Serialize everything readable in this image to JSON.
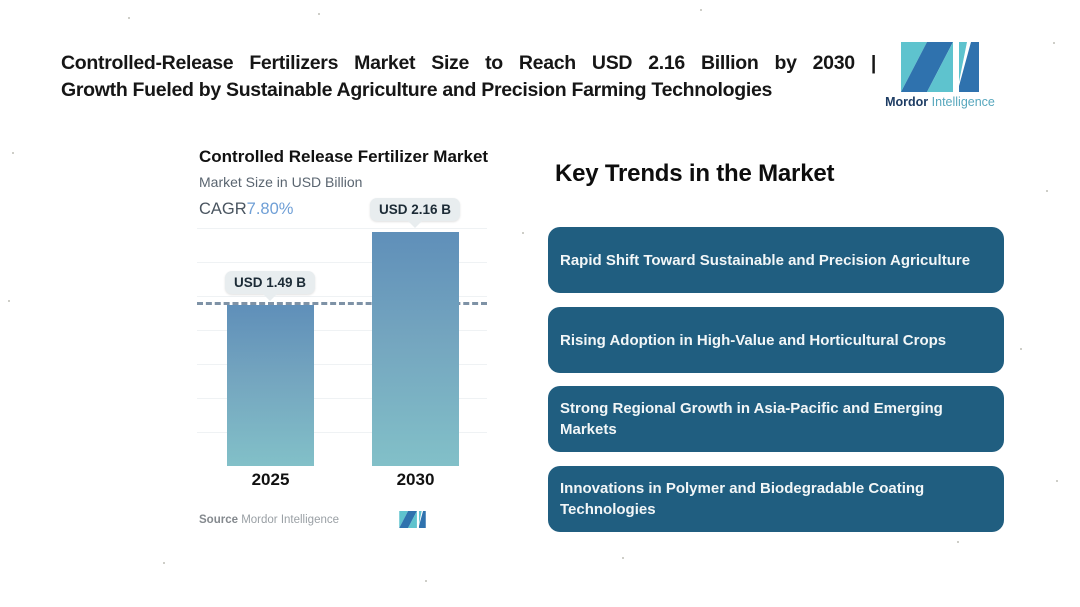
{
  "header": {
    "title_line1": "Controlled-Release Fertilizers Market Size to Reach USD 2.16 Billion by 2030 |",
    "title_line2": "Growth Fueled by Sustainable Agriculture and Precision Farming Technologies",
    "brand_bold": "Mordor",
    "brand_light": "Intelligence"
  },
  "chart_data": {
    "type": "bar",
    "title": "Controlled Release Fertilizer Market",
    "subtitle": "Market Size in USD Billion",
    "cagr_label": "CAGR",
    "cagr_value": "7.80%",
    "categories": [
      "2025",
      "2030"
    ],
    "values": [
      1.49,
      2.16
    ],
    "value_labels": [
      "USD 1.49 B",
      "USD 2.16 B"
    ],
    "unit": "USD Billion",
    "ylim": [
      0,
      2.27
    ],
    "grid": true,
    "reference_line": 1.49,
    "legend": "none",
    "source_label": "Source",
    "source_value": "Mordor Intelligence"
  },
  "trends": {
    "heading": "Key Trends in the Market",
    "items": [
      "Rapid Shift Toward Sustainable and Precision Agriculture",
      "Rising Adoption in High-Value and Horticultural Crops",
      "Strong Regional Growth in Asia-Pacific and Emerging Markets",
      "Innovations in Polymer and Biodegradable Coating Technologies"
    ]
  },
  "colors": {
    "bar_gradient_top": "#5f8fb9",
    "bar_gradient_bottom": "#82c0c8",
    "trend_box": "#205e80",
    "cagr_accent": "#6f9fd6",
    "dashed_reference": "#7e92a6",
    "chip_background": "#e8edef",
    "logo_blue": "#2f72ae",
    "logo_teal": "#5ec3ce"
  }
}
